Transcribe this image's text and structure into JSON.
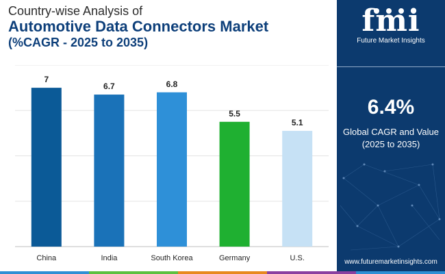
{
  "header": {
    "line1": "Country-wise Analysis of",
    "line2": "Automotive Data Connectors Market",
    "line3": "(%CAGR - 2025 to 2035)"
  },
  "chart_data": {
    "type": "bar",
    "title": "Country-wise Analysis of Automotive Data Connectors Market (%CAGR - 2025 to 2035)",
    "categories": [
      "China",
      "India",
      "South Korea",
      "Germany",
      "U.S."
    ],
    "values": [
      7,
      6.7,
      6.8,
      5.5,
      5.1
    ],
    "value_labels": [
      "7",
      "6.7",
      "6.8",
      "5.5",
      "5.1"
    ],
    "colors": [
      "#0b5a97",
      "#1a72b8",
      "#2e90d8",
      "#1fb031",
      "#c6e1f5"
    ],
    "xlabel": "",
    "ylabel": "",
    "ylim": [
      0,
      8
    ],
    "grid": true
  },
  "side": {
    "logo_text": "fmi",
    "logo_sub": "Future Market Insights",
    "big_value": "6.4%",
    "big_label_1": "Global CAGR and Value",
    "big_label_2": "(2025 to 2035)",
    "url": "www.futuremarketinsights.com"
  },
  "bottom_bar_colors": [
    "#2f8fd4",
    "#5cc040",
    "#e8891f",
    "#8a3fa0",
    "#2f8fd4"
  ]
}
